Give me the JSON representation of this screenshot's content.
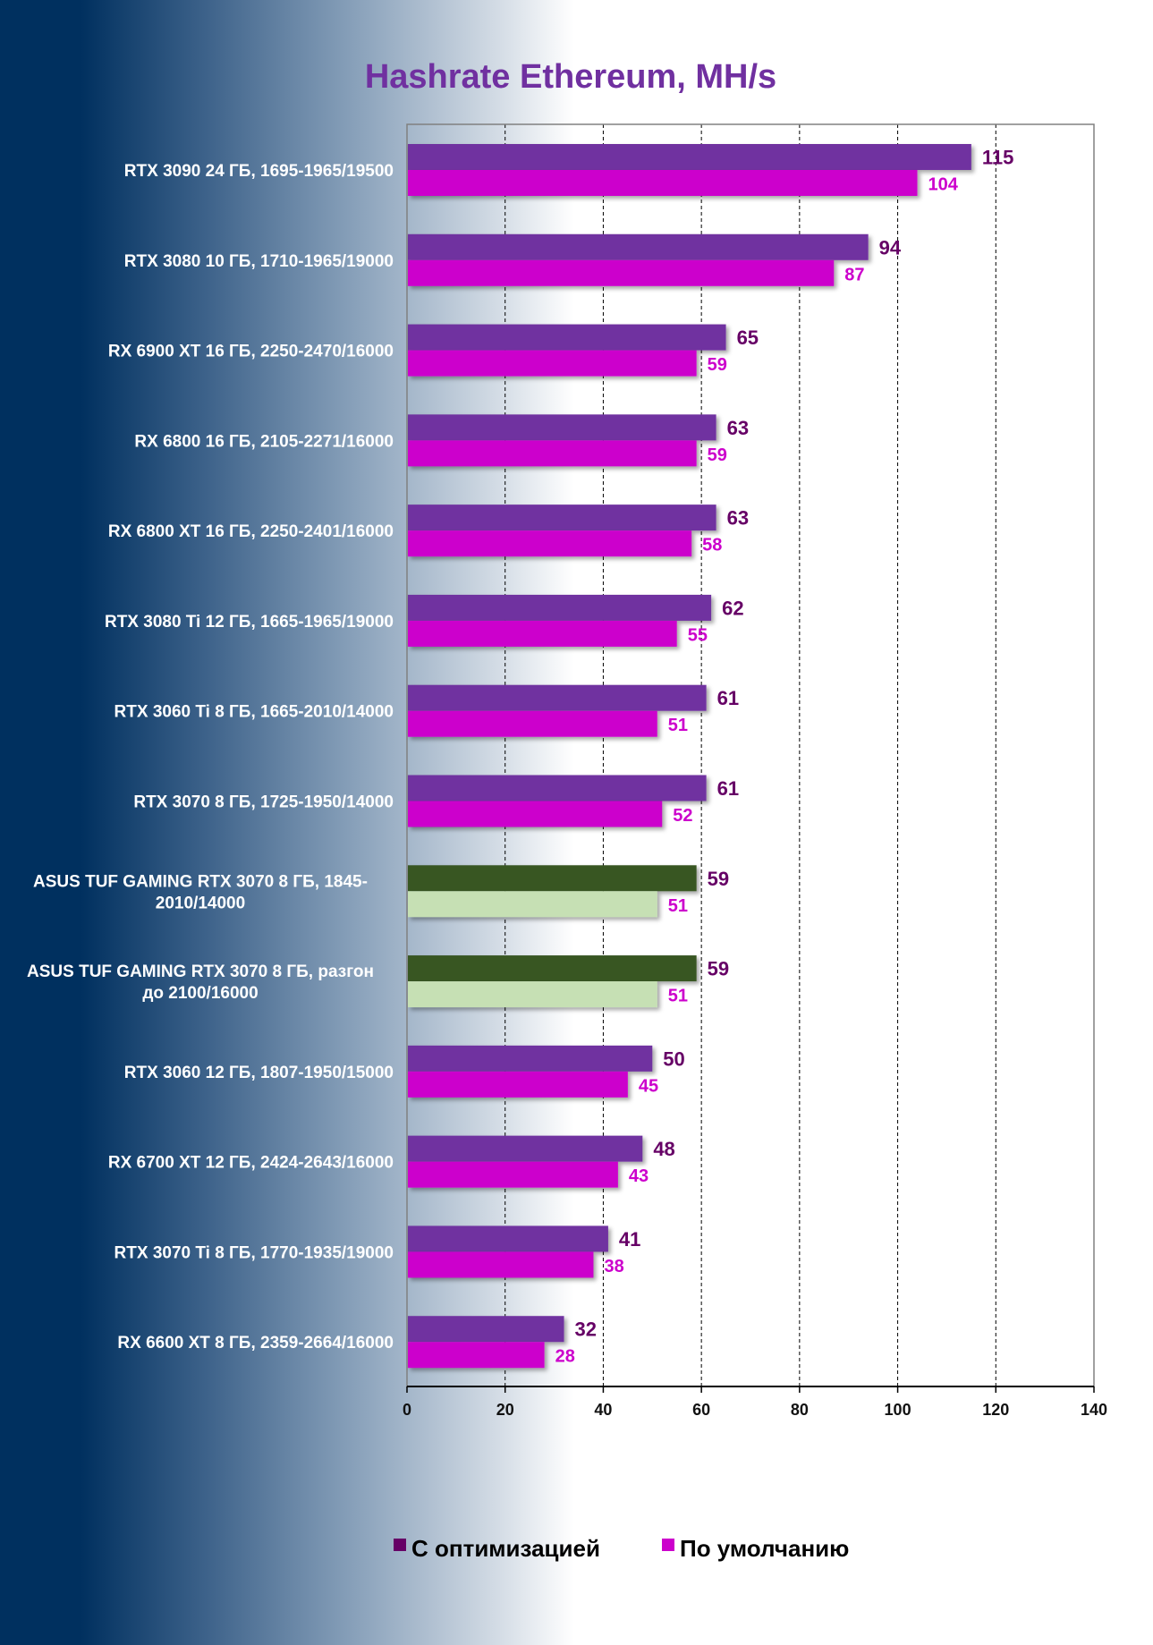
{
  "chart_data": {
    "type": "bar",
    "orientation": "horizontal",
    "title": "Hashrate Ethereum, MH/s",
    "xlabel": "",
    "ylabel": "",
    "xlim": [
      0,
      140
    ],
    "xticks": [
      0,
      20,
      40,
      60,
      80,
      100,
      120,
      140
    ],
    "grid": "vertical dashed",
    "legend_position": "bottom",
    "categories": [
      "RTX 3090 24 ГБ, 1695-1965/19500",
      "RTX 3080 10 ГБ, 1710-1965/19000",
      "RX 6900 XT 16 ГБ, 2250-2470/16000",
      "RX 6800 16 ГБ, 2105-2271/16000",
      "RX 6800 XT 16 ГБ, 2250-2401/16000",
      "RTX 3080 Ti 12 ГБ, 1665-1965/19000",
      "RTX 3060 Ti 8 ГБ, 1665-2010/14000",
      "RTX 3070 8 ГБ, 1725-1950/14000",
      "ASUS TUF GAMING RTX 3070 8 ГБ, 1845-2010/14000",
      "ASUS TUF GAMING RTX 3070 8 ГБ, разгон до 2100/16000",
      "RTX 3060 12 ГБ, 1807-1950/15000",
      "RX 6700 XT 12 ГБ, 2424-2643/16000",
      "RTX 3070 Ti 8 ГБ, 1770-1935/19000",
      "RX 6600 XT 8 ГБ, 2359-2664/16000"
    ],
    "category_lines": [
      [
        "RTX 3090 24 ГБ, 1695-1965/19500"
      ],
      [
        "RTX 3080 10 ГБ, 1710-1965/19000"
      ],
      [
        "RX 6900 XT 16 ГБ, 2250-2470/16000"
      ],
      [
        "RX 6800 16 ГБ, 2105-2271/16000"
      ],
      [
        "RX 6800 XT 16 ГБ, 2250-2401/16000"
      ],
      [
        "RTX 3080 Ti 12 ГБ, 1665-1965/19000"
      ],
      [
        "RTX 3060 Ti 8 ГБ, 1665-2010/14000"
      ],
      [
        "RTX 3070 8 ГБ, 1725-1950/14000"
      ],
      [
        "ASUS TUF GAMING RTX 3070 8 ГБ, 1845-",
        "2010/14000"
      ],
      [
        "ASUS TUF GAMING RTX 3070 8 ГБ, разгон",
        "до 2100/16000"
      ],
      [
        "RTX 3060 12 ГБ, 1807-1950/15000"
      ],
      [
        "RX 6700 XT 12 ГБ, 2424-2643/16000"
      ],
      [
        "RTX 3070 Ti 8 ГБ, 1770-1935/19000"
      ],
      [
        "RX 6600 XT 8 ГБ, 2359-2664/16000"
      ]
    ],
    "highlighted_categories": [
      8,
      9
    ],
    "series": [
      {
        "name": "С оптимизацией",
        "values": [
          115,
          94,
          65,
          63,
          63,
          62,
          61,
          61,
          59,
          59,
          50,
          48,
          41,
          32
        ],
        "color": "#7030a0",
        "highlight_color": "#375623",
        "label_color": "#660066",
        "legend_color": "#660066"
      },
      {
        "name": "По умолчанию",
        "values": [
          104,
          87,
          59,
          59,
          58,
          55,
          51,
          52,
          51,
          51,
          45,
          43,
          38,
          28
        ],
        "color": "#cc00cc",
        "highlight_color": "#c6e0b4",
        "label_color": "#cc00cc",
        "legend_color": "#cc00cc"
      }
    ]
  }
}
